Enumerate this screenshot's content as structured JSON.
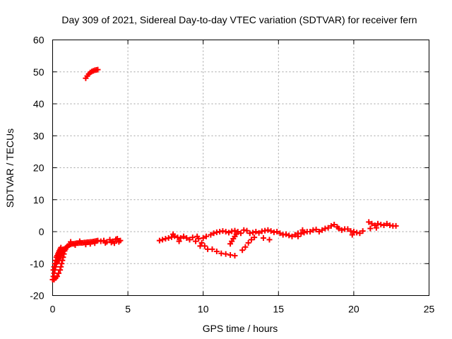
{
  "chart_data": {
    "type": "scatter",
    "title": "Day 309 of 2021, Sidereal Day-to-day VTEC variation (SDTVAR) for receiver fern",
    "xlabel": "GPS time / hours",
    "ylabel": "SDTVAR / TECUs",
    "xlim": [
      0,
      25
    ],
    "ylim": [
      -20,
      60
    ],
    "xticks": [
      0,
      5,
      10,
      15,
      20,
      25
    ],
    "yticks": [
      -20,
      -10,
      0,
      10,
      20,
      30,
      40,
      50,
      60
    ],
    "xtick_labels": [
      "0",
      "5",
      "10",
      "15",
      "20",
      "25"
    ],
    "ytick_labels": [
      "-20",
      "-10",
      "0",
      "10",
      "20",
      "30",
      "40",
      "50",
      "60"
    ],
    "grid": true,
    "marker": "plus",
    "series": [
      {
        "name": "SDTVAR",
        "color": "#ff0000",
        "points": [
          [
            0.0,
            -15
          ],
          [
            0.05,
            -14
          ],
          [
            0.1,
            -13
          ],
          [
            0.15,
            -12
          ],
          [
            0.2,
            -11
          ],
          [
            0.25,
            -10
          ],
          [
            0.3,
            -9.5
          ],
          [
            0.35,
            -9
          ],
          [
            0.4,
            -8.5
          ],
          [
            0.45,
            -8
          ],
          [
            0.5,
            -7.5
          ],
          [
            0.55,
            -7
          ],
          [
            0.6,
            -6.5
          ],
          [
            0.65,
            -6
          ],
          [
            0.7,
            -5.5
          ],
          [
            0.05,
            -12
          ],
          [
            0.1,
            -11
          ],
          [
            0.15,
            -10
          ],
          [
            0.2,
            -9
          ],
          [
            0.25,
            -8
          ],
          [
            0.3,
            -7.5
          ],
          [
            0.35,
            -7
          ],
          [
            0.4,
            -6.5
          ],
          [
            0.45,
            -6
          ],
          [
            0.5,
            -5.5
          ],
          [
            0.55,
            -5
          ],
          [
            0.1,
            -15
          ],
          [
            0.2,
            -14.5
          ],
          [
            0.3,
            -14
          ],
          [
            0.4,
            -13
          ],
          [
            0.5,
            -12
          ],
          [
            0.55,
            -11
          ],
          [
            0.6,
            -10
          ],
          [
            0.65,
            -9
          ],
          [
            0.7,
            -8
          ],
          [
            0.75,
            -7
          ],
          [
            0.8,
            -6
          ],
          [
            0.85,
            -5.5
          ],
          [
            0.9,
            -5
          ],
          [
            0.95,
            -4.7
          ],
          [
            1.0,
            -4.5
          ],
          [
            1.1,
            -4.2
          ],
          [
            1.2,
            -4
          ],
          [
            1.3,
            -3.8
          ],
          [
            1.4,
            -3.8
          ],
          [
            1.5,
            -3.7
          ],
          [
            1.6,
            -3.6
          ],
          [
            1.7,
            -3.6
          ],
          [
            1.8,
            -3.5
          ],
          [
            1.9,
            -3.5
          ],
          [
            2.0,
            -3.5
          ],
          [
            2.1,
            -3.4
          ],
          [
            2.2,
            -3.4
          ],
          [
            2.3,
            -3.3
          ],
          [
            2.4,
            -3.3
          ],
          [
            2.5,
            -3.2
          ],
          [
            2.6,
            -3.2
          ],
          [
            2.7,
            -3.1
          ],
          [
            2.8,
            -3.0
          ],
          [
            2.9,
            -2.9
          ],
          [
            3.0,
            -2.8
          ],
          [
            1.2,
            -3.2
          ],
          [
            1.5,
            -4.2
          ],
          [
            1.8,
            -3.0
          ],
          [
            2.2,
            -4.0
          ],
          [
            2.5,
            -3.8
          ],
          [
            2.8,
            -3.6
          ],
          [
            3.2,
            -3.0
          ],
          [
            3.4,
            -2.8
          ],
          [
            3.6,
            -3.2
          ],
          [
            3.8,
            -2.5
          ],
          [
            4.0,
            -3.0
          ],
          [
            4.2,
            -2.4
          ],
          [
            4.4,
            -3.2
          ],
          [
            4.5,
            -2.8
          ],
          [
            3.5,
            -3.5
          ],
          [
            3.9,
            -3.4
          ],
          [
            4.1,
            -3.6
          ],
          [
            4.3,
            -2.2
          ],
          [
            2.2,
            48
          ],
          [
            2.3,
            48.7
          ],
          [
            2.4,
            49.3
          ],
          [
            2.5,
            49.8
          ],
          [
            2.6,
            50.1
          ],
          [
            2.7,
            50.3
          ],
          [
            2.8,
            50.5
          ],
          [
            2.9,
            50.6
          ],
          [
            3.0,
            50.7
          ],
          [
            7.1,
            -2.8
          ],
          [
            7.3,
            -2.5
          ],
          [
            7.5,
            -2.2
          ],
          [
            7.7,
            -2.0
          ],
          [
            7.9,
            -1.7
          ],
          [
            8.1,
            -1.4
          ],
          [
            8.3,
            -1.8
          ],
          [
            8.5,
            -2.0
          ],
          [
            8.7,
            -1.5
          ],
          [
            8.0,
            -0.8
          ],
          [
            8.4,
            -3.0
          ],
          [
            8.9,
            -2.0
          ],
          [
            9.1,
            -2.5
          ],
          [
            9.3,
            -1.8
          ],
          [
            9.5,
            -3.0
          ],
          [
            9.7,
            -2.2
          ],
          [
            9.9,
            -3.5
          ],
          [
            10.1,
            -4.5
          ],
          [
            10.3,
            -5.5
          ],
          [
            9.6,
            -1.5
          ],
          [
            10.0,
            -2.0
          ],
          [
            10.2,
            -1.5
          ],
          [
            9.8,
            -4.5
          ],
          [
            10.5,
            -1.0
          ],
          [
            10.7,
            -0.5
          ],
          [
            10.9,
            -0.2
          ],
          [
            11.1,
            0
          ],
          [
            11.3,
            0.2
          ],
          [
            11.5,
            0
          ],
          [
            11.7,
            -0.3
          ],
          [
            11.9,
            0.1
          ],
          [
            12.1,
            0.3
          ],
          [
            12.3,
            0
          ],
          [
            12.5,
            -0.5
          ],
          [
            12.7,
            0.5
          ],
          [
            12.9,
            0.3
          ],
          [
            13.1,
            -0.5
          ],
          [
            10.6,
            -5.5
          ],
          [
            10.9,
            -6.2
          ],
          [
            11.2,
            -6.8
          ],
          [
            11.5,
            -7.0
          ],
          [
            11.8,
            -7.3
          ],
          [
            12.1,
            -7.5
          ],
          [
            11.8,
            -3.8
          ],
          [
            11.9,
            -3.0
          ],
          [
            12.0,
            -2.2
          ],
          [
            12.1,
            -1.5
          ],
          [
            12.2,
            -0.8
          ],
          [
            12.6,
            -5.8
          ],
          [
            12.8,
            -4.8
          ],
          [
            13.0,
            -3.5
          ],
          [
            13.2,
            -2.5
          ],
          [
            13.4,
            -1.8
          ],
          [
            13.3,
            -0.3
          ],
          [
            13.5,
            0
          ],
          [
            13.7,
            -0.4
          ],
          [
            13.9,
            0.1
          ],
          [
            14.1,
            0.3
          ],
          [
            14.3,
            0.5
          ],
          [
            14.5,
            0.2
          ],
          [
            14.7,
            -0.2
          ],
          [
            14.9,
            0
          ],
          [
            14.0,
            -2.0
          ],
          [
            14.4,
            -2.5
          ],
          [
            15.1,
            -0.5
          ],
          [
            15.3,
            -1.0
          ],
          [
            15.5,
            -0.8
          ],
          [
            15.7,
            -1.2
          ],
          [
            15.9,
            -1.5
          ],
          [
            16.1,
            -1.0
          ],
          [
            16.3,
            -0.5
          ],
          [
            16.5,
            -0.7
          ],
          [
            16.7,
            -0.3
          ],
          [
            16.9,
            0
          ],
          [
            16.3,
            -1.5
          ],
          [
            16.6,
            0.5
          ],
          [
            17.1,
            0
          ],
          [
            17.3,
            0.5
          ],
          [
            17.5,
            0.7
          ],
          [
            17.7,
            0
          ],
          [
            17.9,
            0.5
          ],
          [
            18.1,
            1.0
          ],
          [
            18.3,
            1.2
          ],
          [
            18.5,
            1.8
          ],
          [
            18.7,
            2.2
          ],
          [
            18.9,
            1.5
          ],
          [
            19.0,
            1.0
          ],
          [
            19.2,
            0.5
          ],
          [
            19.4,
            0.8
          ],
          [
            19.6,
            0.8
          ],
          [
            19.8,
            0.2
          ],
          [
            20.0,
            0
          ],
          [
            20.2,
            -0.3
          ],
          [
            20.4,
            -0.5
          ],
          [
            20.6,
            0.2
          ],
          [
            19.9,
            -1.0
          ],
          [
            21.0,
            3.0
          ],
          [
            21.2,
            2.5
          ],
          [
            21.4,
            2.0
          ],
          [
            21.6,
            2.5
          ],
          [
            21.8,
            2.2
          ],
          [
            22.0,
            2.0
          ],
          [
            22.2,
            2.5
          ],
          [
            22.4,
            2.0
          ],
          [
            22.6,
            1.8
          ],
          [
            22.8,
            1.8
          ],
          [
            21.5,
            1.2
          ],
          [
            21.1,
            1.0
          ]
        ]
      }
    ]
  }
}
